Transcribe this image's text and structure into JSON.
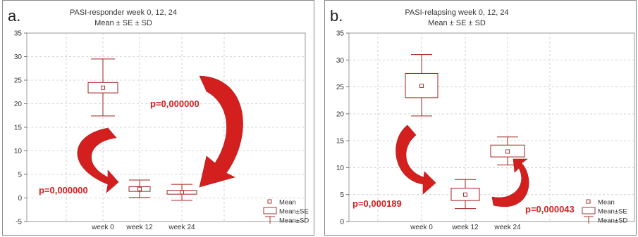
{
  "chart_data": [
    {
      "type": "box",
      "panel_label": "a.",
      "title": "PASI-responder week 0, 12, 24",
      "subtitle": "Mean ± SE ± SD",
      "categories": [
        "week 0",
        "week 12",
        "week 24"
      ],
      "ylim": [
        -5,
        35
      ],
      "yticks": [
        -5,
        0,
        5,
        10,
        15,
        20,
        25,
        30,
        35
      ],
      "grid": true,
      "series": [
        {
          "mean": 23.4,
          "se_low": 22.3,
          "se_high": 24.5,
          "sd_low": 17.4,
          "sd_high": 29.5
        },
        {
          "mean": 1.9,
          "se_low": 1.4,
          "se_high": 2.4,
          "sd_low": 0.1,
          "sd_high": 3.8
        },
        {
          "mean": 1.2,
          "se_low": 0.8,
          "se_high": 1.6,
          "sd_low": -0.5,
          "sd_high": 2.9
        }
      ],
      "legend": {
        "items": [
          "Mean",
          "Mean±SE",
          "Mean±SD"
        ],
        "position": "bottom-right"
      },
      "annotations": [
        "p=0,000000",
        "p=0,000000"
      ],
      "colors": {
        "box": "#a0201e",
        "arrow": "#d41f1f",
        "text": "#d41f1f"
      }
    },
    {
      "type": "box",
      "panel_label": "b.",
      "title": "PASI-relapsing week 0, 12, 24",
      "subtitle": "Mean ± SE ± SD",
      "categories": [
        "week 0",
        "week 12",
        "week 24"
      ],
      "ylim": [
        0,
        35
      ],
      "yticks": [
        0,
        5,
        10,
        15,
        20,
        25,
        30,
        35
      ],
      "grid": true,
      "series": [
        {
          "mean": 25.2,
          "se_low": 23.0,
          "se_high": 27.5,
          "sd_low": 19.6,
          "sd_high": 31.0
        },
        {
          "mean": 5.0,
          "se_low": 3.9,
          "se_high": 6.2,
          "sd_low": 2.4,
          "sd_high": 7.8
        },
        {
          "mean": 13.0,
          "se_low": 12.0,
          "se_high": 14.2,
          "sd_low": 10.5,
          "sd_high": 15.7
        }
      ],
      "legend": {
        "items": [
          "Mean",
          "Mean±SE",
          "Mean±SD"
        ],
        "position": "bottom-right"
      },
      "annotations": [
        "p=0,000189",
        "p=0,000043"
      ],
      "colors": {
        "box": "#a0201e",
        "arrow": "#d41f1f",
        "text": "#d41f1f"
      }
    }
  ]
}
